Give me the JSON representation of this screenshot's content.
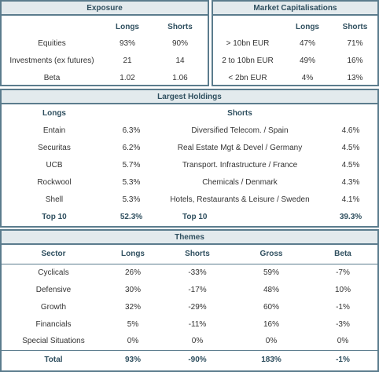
{
  "exposure": {
    "title": "Exposure",
    "columns": [
      "Longs",
      "Shorts"
    ],
    "rows": [
      {
        "label": "Equities",
        "longs": "93%",
        "shorts": "90%"
      },
      {
        "label": "Investments (ex futures)",
        "longs": "21",
        "shorts": "14"
      },
      {
        "label": "Beta",
        "longs": "1.02",
        "shorts": "1.06"
      }
    ]
  },
  "market_cap": {
    "title": "Market Capitalisations",
    "columns": [
      "Longs",
      "Shorts"
    ],
    "rows": [
      {
        "label": "> 10bn EUR",
        "longs": "47%",
        "shorts": "71%"
      },
      {
        "label": "2 to 10bn EUR",
        "longs": "49%",
        "shorts": "16%"
      },
      {
        "label": "< 2bn EUR",
        "longs": "4%",
        "shorts": "13%"
      }
    ]
  },
  "holdings": {
    "title": "Largest Holdings",
    "longs_header": "Longs",
    "shorts_header": "Shorts",
    "rows": [
      {
        "long_name": "Entain",
        "long_pct": "6.3%",
        "short_name": "Diversified Telecom. / Spain",
        "short_pct": "4.6%"
      },
      {
        "long_name": "Securitas",
        "long_pct": "6.2%",
        "short_name": "Real Estate Mgt & Devel / Germany",
        "short_pct": "4.5%"
      },
      {
        "long_name": "UCB",
        "long_pct": "5.7%",
        "short_name": "Transport. Infrastructure / France",
        "short_pct": "4.5%"
      },
      {
        "long_name": "Rockwool",
        "long_pct": "5.3%",
        "short_name": "Chemicals / Denmark",
        "short_pct": "4.3%"
      },
      {
        "long_name": "Shell",
        "long_pct": "5.3%",
        "short_name": "Hotels, Restaurants & Leisure / Sweden",
        "short_pct": "4.1%"
      }
    ],
    "top10": {
      "long_label": "Top 10",
      "long_pct": "52.3%",
      "short_label": "Top 10",
      "short_pct": "39.3%"
    }
  },
  "themes": {
    "title": "Themes",
    "columns": [
      "Sector",
      "Longs",
      "Shorts",
      "Gross",
      "Beta"
    ],
    "rows": [
      {
        "sector": "Cyclicals",
        "longs": "26%",
        "shorts": "-33%",
        "gross": "59%",
        "beta": "-7%"
      },
      {
        "sector": "Defensive",
        "longs": "30%",
        "shorts": "-17%",
        "gross": "48%",
        "beta": "10%"
      },
      {
        "sector": "Growth",
        "longs": "32%",
        "shorts": "-29%",
        "gross": "60%",
        "beta": "-1%"
      },
      {
        "sector": "Financials",
        "longs": "5%",
        "shorts": "-11%",
        "gross": "16%",
        "beta": "-3%"
      },
      {
        "sector": "Special Situations",
        "longs": "0%",
        "shorts": "0%",
        "gross": "0%",
        "beta": "0%"
      }
    ],
    "total": {
      "sector": "Total",
      "longs": "93%",
      "shorts": "-90%",
      "gross": "183%",
      "beta": "-1%"
    }
  }
}
